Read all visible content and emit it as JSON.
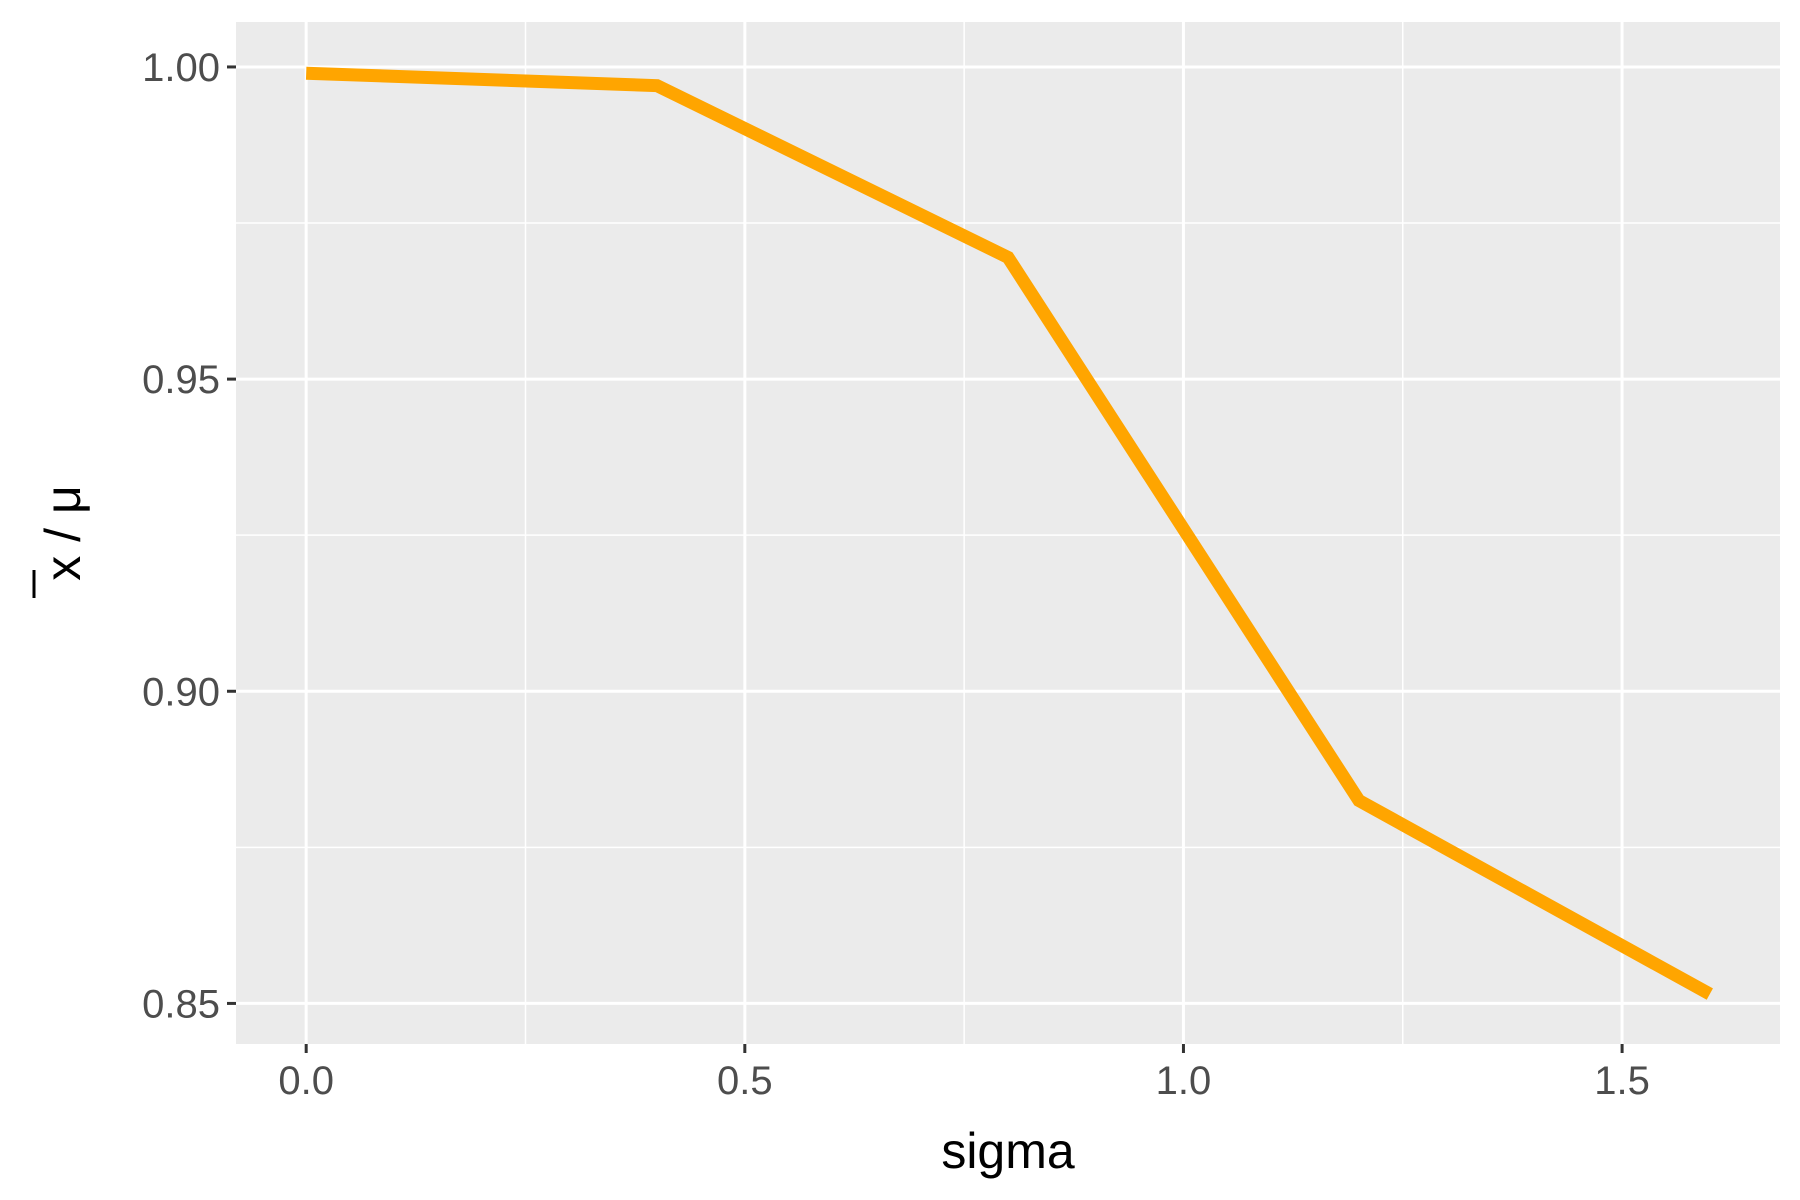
{
  "chart_data": {
    "type": "line",
    "title": "",
    "xlabel": "sigma",
    "ylabel": "x / μ",
    "x": [
      0.0,
      0.4,
      0.8,
      1.2,
      1.6
    ],
    "series": [
      {
        "values": [
          0.999,
          0.997,
          0.9695,
          0.8825,
          0.8515
        ]
      }
    ],
    "xlim": [
      -0.08,
      1.68
    ],
    "ylim": [
      0.8435,
      1.0072
    ],
    "x_ticks": [
      0.0,
      0.5,
      1.0,
      1.5
    ],
    "x_tick_labels": [
      "0.0",
      "0.5",
      "1.0",
      "1.5"
    ],
    "y_ticks": [
      0.85,
      0.9,
      0.95,
      1.0
    ],
    "y_tick_labels": [
      "0.85",
      "0.90",
      "0.95",
      "1.00"
    ],
    "grid": true,
    "legend": "none",
    "colors": {
      "panel": "#ebebeb",
      "grid": "#ffffff",
      "line": "#ffa500",
      "tick_text": "#4d4d4d",
      "tick_mark": "#333333"
    }
  }
}
